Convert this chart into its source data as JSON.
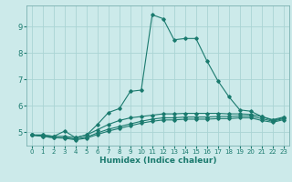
{
  "title": "",
  "xlabel": "Humidex (Indice chaleur)",
  "bg_color": "#cceaea",
  "grid_color": "#aad4d4",
  "line_color": "#1a7a6e",
  "xlim": [
    -0.5,
    23.5
  ],
  "ylim": [
    4.5,
    9.8
  ],
  "xticks": [
    0,
    1,
    2,
    3,
    4,
    5,
    6,
    7,
    8,
    9,
    10,
    11,
    12,
    13,
    14,
    15,
    16,
    17,
    18,
    19,
    20,
    21,
    22,
    23
  ],
  "yticks": [
    5,
    6,
    7,
    8,
    9
  ],
  "lines": [
    [
      4.9,
      4.9,
      4.85,
      5.05,
      4.8,
      4.9,
      5.3,
      5.75,
      5.9,
      6.55,
      6.6,
      9.45,
      9.3,
      8.5,
      8.55,
      8.55,
      7.7,
      6.95,
      6.35,
      5.85,
      5.8,
      5.6,
      5.45,
      5.55
    ],
    [
      4.9,
      4.9,
      4.85,
      4.85,
      4.8,
      4.9,
      5.1,
      5.3,
      5.45,
      5.55,
      5.6,
      5.65,
      5.7,
      5.7,
      5.72,
      5.72,
      5.72,
      5.72,
      5.7,
      5.7,
      5.68,
      5.6,
      5.48,
      5.58
    ],
    [
      4.9,
      4.85,
      4.8,
      4.8,
      4.75,
      4.82,
      4.98,
      5.12,
      5.22,
      5.32,
      5.42,
      5.5,
      5.55,
      5.55,
      5.58,
      5.58,
      5.58,
      5.6,
      5.6,
      5.62,
      5.62,
      5.52,
      5.42,
      5.52
    ],
    [
      4.9,
      4.85,
      4.8,
      4.78,
      4.72,
      4.78,
      4.92,
      5.05,
      5.15,
      5.25,
      5.35,
      5.42,
      5.47,
      5.47,
      5.5,
      5.5,
      5.5,
      5.52,
      5.52,
      5.55,
      5.55,
      5.45,
      5.38,
      5.48
    ]
  ]
}
